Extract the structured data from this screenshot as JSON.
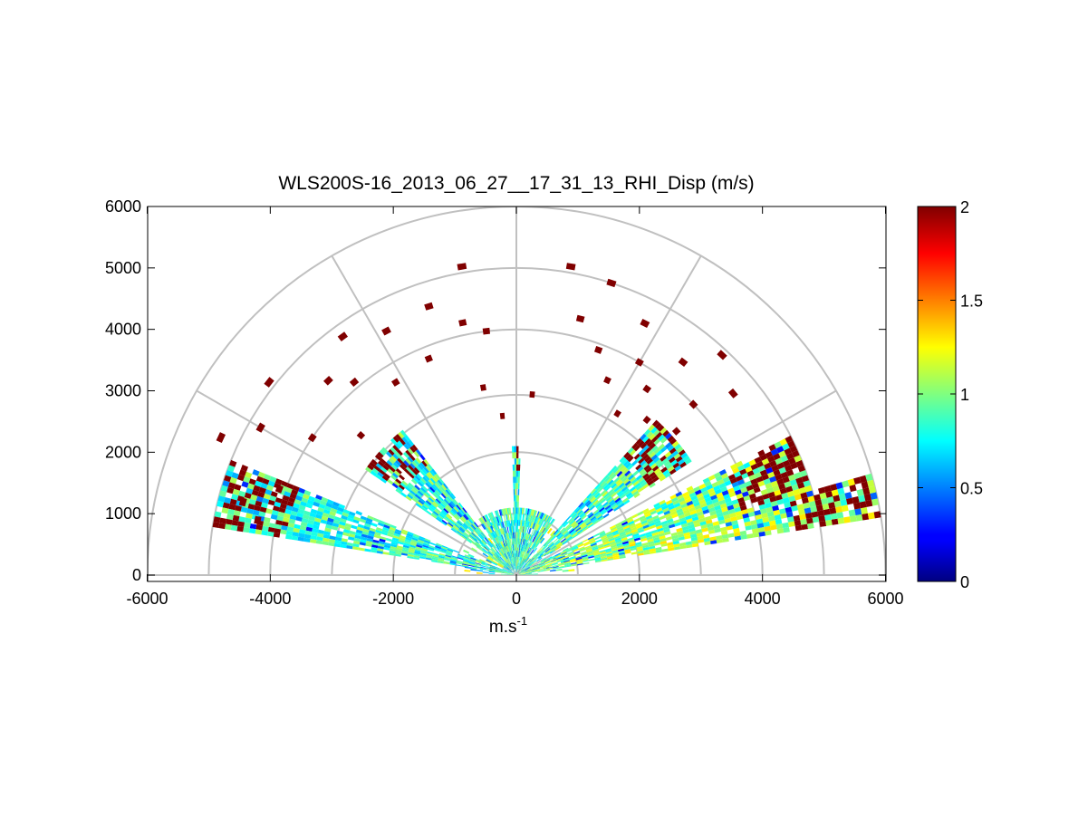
{
  "chart_data": {
    "type": "heatmap",
    "subtype": "polar-rhi",
    "title": "WLS200S-16_2013_06_27__17_31_13_RHI_Disp (m/s)",
    "xlabel": {
      "base": "m.s",
      "sup": "-1"
    },
    "ylabel": "",
    "xlim": [
      -6000,
      6000
    ],
    "ylim": [
      0,
      6000
    ],
    "x_ticks": [
      "-6000",
      "-4000",
      "-2000",
      "0",
      "2000",
      "4000",
      "6000"
    ],
    "y_ticks": [
      "0",
      "1000",
      "2000",
      "3000",
      "4000",
      "5000",
      "6000"
    ],
    "polar_grid": {
      "rings_m": [
        1000,
        2000,
        3000,
        4000,
        5000,
        6000
      ],
      "spokes_deg": [
        0,
        30,
        60,
        90,
        120,
        150,
        180
      ],
      "color": "#c0c0c0"
    },
    "colorbar": {
      "colormap": "jet",
      "clim": [
        0,
        2
      ],
      "ticks": [
        "0",
        "0.5",
        "1",
        "1.5",
        "2"
      ]
    },
    "sectors": [
      {
        "az_from": 9,
        "az_to": 16,
        "range_max": 6000,
        "dominant": 1.05,
        "far_high": true
      },
      {
        "az_from": 16,
        "az_to": 27,
        "range_max": 5000,
        "dominant": 1.0,
        "far_high": true
      },
      {
        "az_from": 33,
        "az_to": 48,
        "range_max": 3400,
        "dominant": 0.9,
        "far_high": true
      },
      {
        "az_from": 55,
        "az_to": 88,
        "range_max": 1100,
        "dominant": 0.9,
        "far_high": false
      },
      {
        "az_from": 88,
        "az_to": 92,
        "range_max": 2100,
        "dominant": 0.85,
        "far_high": true
      },
      {
        "az_from": 92,
        "az_to": 125,
        "range_max": 1100,
        "dominant": 0.9,
        "far_high": false
      },
      {
        "az_from": 128,
        "az_to": 145,
        "range_max": 3000,
        "dominant": 0.85,
        "far_high": true
      },
      {
        "az_from": 158,
        "az_to": 171,
        "range_max": 5000,
        "dominant": 0.85,
        "far_high": true
      }
    ],
    "sparse_high_gates": [
      [
        80,
        5100
      ],
      [
        76,
        4300
      ],
      [
        72,
        5000
      ],
      [
        70,
        3900
      ],
      [
        65,
        3500
      ],
      [
        63,
        4600
      ],
      [
        60,
        4000
      ],
      [
        58,
        3100
      ],
      [
        55,
        3700
      ],
      [
        52,
        4400
      ],
      [
        50,
        3300
      ],
      [
        47,
        4900
      ],
      [
        44,
        4000
      ],
      [
        42,
        3500
      ],
      [
        40,
        4600
      ],
      [
        100,
        5100
      ],
      [
        102,
        4200
      ],
      [
        108,
        4600
      ],
      [
        112,
        3800
      ],
      [
        118,
        4500
      ],
      [
        122,
        3700
      ],
      [
        126,
        4800
      ],
      [
        130,
        4100
      ],
      [
        134,
        4400
      ],
      [
        138,
        3400
      ],
      [
        142,
        5100
      ],
      [
        146,
        4000
      ],
      [
        150,
        4800
      ],
      [
        155,
        5300
      ],
      [
        160,
        4100
      ],
      [
        165,
        4600
      ],
      [
        168,
        4300
      ],
      [
        95,
        2600
      ],
      [
        85,
        2950
      ],
      [
        100,
        3100
      ],
      [
        97,
        4000
      ]
    ]
  }
}
